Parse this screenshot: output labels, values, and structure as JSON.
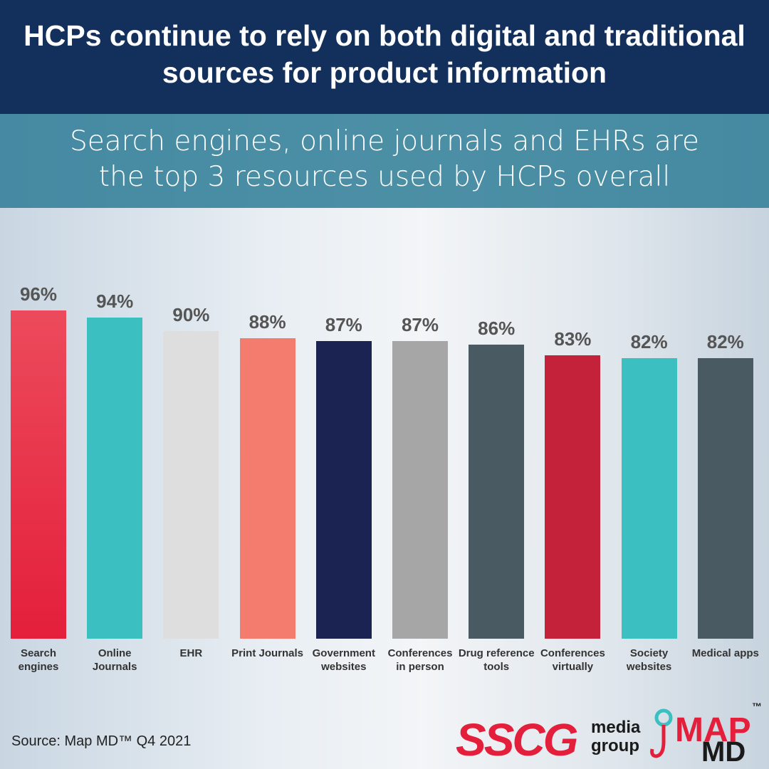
{
  "chart_data": {
    "type": "bar",
    "title": "HCPs continue to rely on both digital and traditional sources for product information",
    "subtitle": "Search engines, online journals and EHRs are the top 3 resources used by HCPs overall",
    "categories": [
      "Search engines",
      "Online Journals",
      "EHR",
      "Print Journals",
      "Government websites",
      "Conferences in person",
      "Drug reference tools",
      "Conferences virtually",
      "Society websites",
      "Medical apps"
    ],
    "values": [
      96,
      94,
      90,
      88,
      87,
      87,
      86,
      83,
      82,
      82
    ],
    "value_labels": [
      "96%",
      "94%",
      "90%",
      "88%",
      "87%",
      "87%",
      "86%",
      "83%",
      "82%",
      "82%"
    ],
    "colors": [
      "#e41f3b",
      "#3bbfc0",
      "#dedede",
      "#f47c6f",
      "#1a2352",
      "#a6a6a6",
      "#4a5a63",
      "#c4213a",
      "#3bbfc0",
      "#4a5a63"
    ],
    "source": "Source: Map MD™ Q4 2021"
  },
  "logo": {
    "sscg": "SSCG",
    "media": "media",
    "group": "group",
    "map": "MAP",
    "md": "MD",
    "tm": "™"
  }
}
